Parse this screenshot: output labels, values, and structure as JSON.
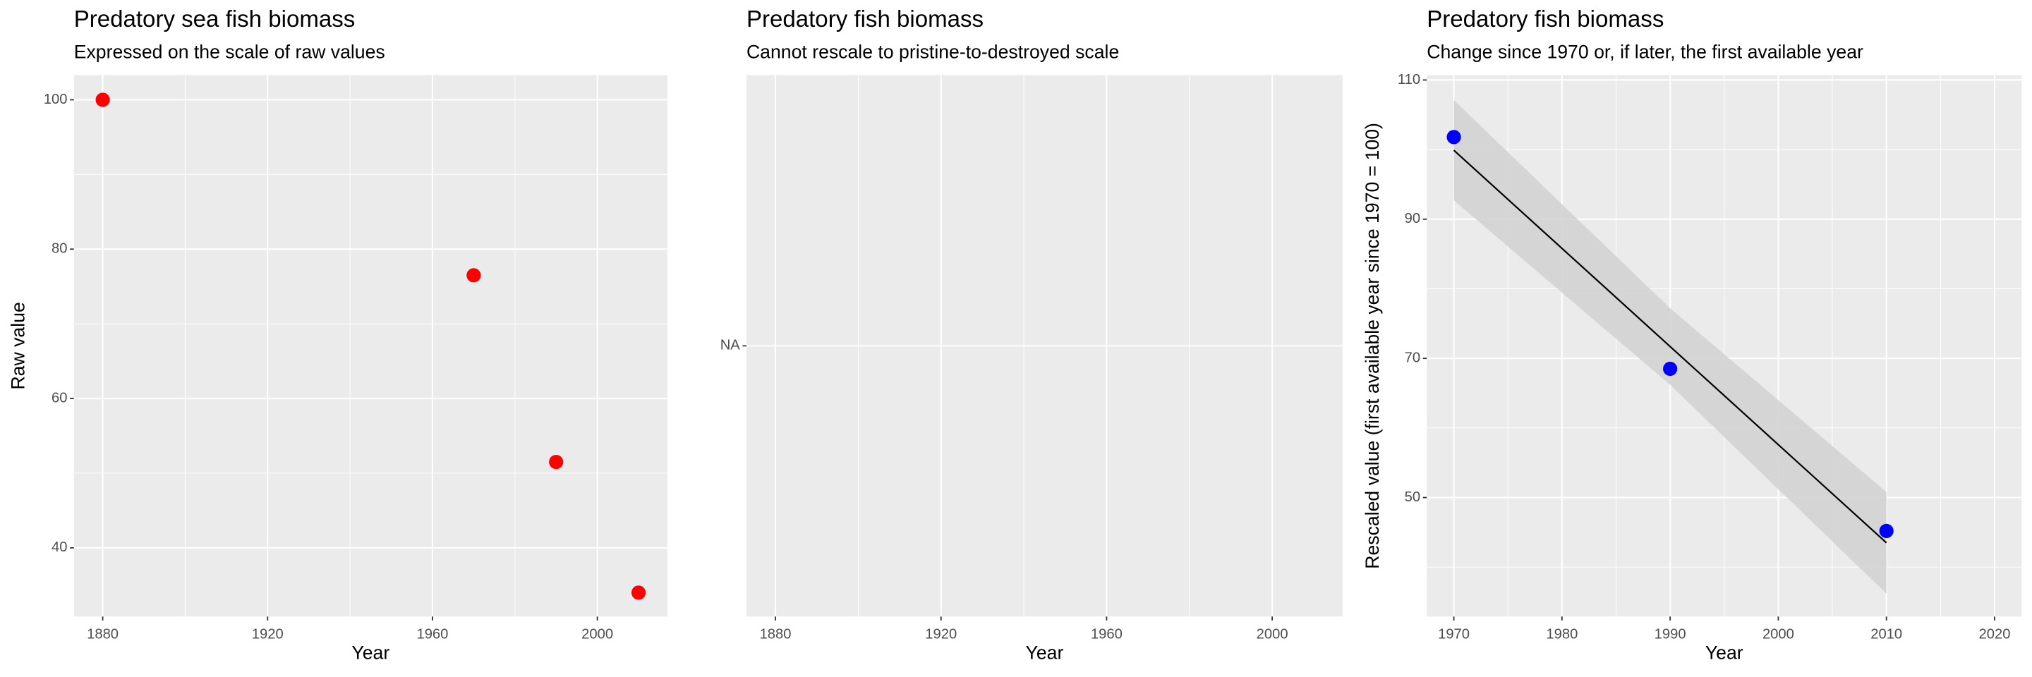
{
  "chart_data": [
    {
      "type": "scatter",
      "title": "Predatory sea fish biomass",
      "subtitle": "Expressed on the scale of raw values",
      "x_label": "Year",
      "y_label": "Raw value",
      "x": [
        1880,
        1970,
        1990,
        2010
      ],
      "values": [
        100,
        76.5,
        51.5,
        34
      ],
      "color": "#ff0000",
      "xlim": [
        1873,
        2017
      ],
      "ylim": [
        30.8,
        103.3
      ],
      "xticks": [
        1880,
        1920,
        1960,
        2000
      ],
      "yticks": [
        40,
        60,
        80,
        100
      ],
      "grid": true
    },
    {
      "type": "scatter",
      "title": "Predatory fish biomass",
      "subtitle": "Cannot rescale to pristine-to-destroyed scale",
      "x_label": "Year",
      "x": [],
      "values": [],
      "color": "#ff0000",
      "xlim": [
        1873,
        2017
      ],
      "xticks": [
        1880,
        1920,
        1960,
        2000
      ],
      "y_categories": [
        "NA"
      ],
      "grid": true
    },
    {
      "type": "scatter",
      "title": "Predatory fish biomass",
      "subtitle": "Change since 1970 or, if later, the first available year",
      "x_label": "Year",
      "y_label": "Rescaled value (first available year since 1970 = 100)",
      "x": [
        1970,
        1990,
        2010
      ],
      "values": [
        101.8,
        68.5,
        45.2
      ],
      "color": "#0000ff",
      "fit": {
        "x": [
          1970,
          1990,
          2010
        ],
        "values": [
          99.9,
          71.7,
          43.5
        ],
        "lower": [
          92.7,
          66.2,
          36.2
        ],
        "upper": [
          107.1,
          77.2,
          50.8
        ],
        "color": "#000000",
        "band_color": "#d3d3d3"
      },
      "xlim": [
        1967.5,
        2022.5
      ],
      "ylim": [
        32.9,
        110.7
      ],
      "xticks": [
        1970,
        1980,
        1990,
        2000,
        2010,
        2020
      ],
      "yticks": [
        50,
        70,
        90,
        110
      ],
      "grid": true
    }
  ]
}
